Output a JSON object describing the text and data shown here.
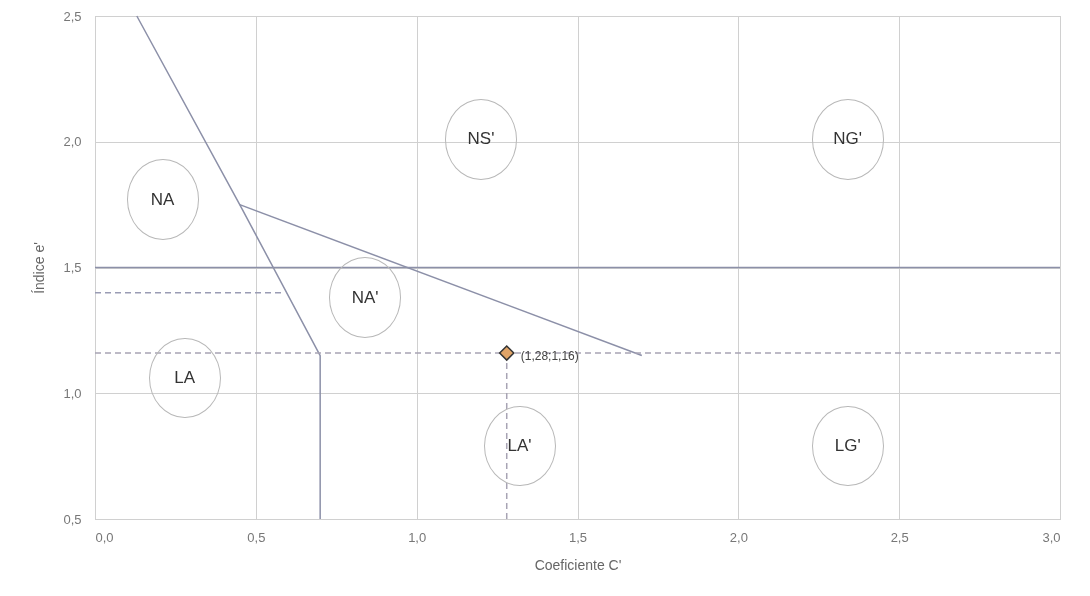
{
  "chart_data": {
    "type": "line",
    "xlabel": "Coeficiente C'",
    "ylabel": "Índice e'",
    "xlim": [
      0,
      3
    ],
    "ylim": [
      0.5,
      2.5
    ],
    "xticks": [
      {
        "value": 0,
        "label": "0,0"
      },
      {
        "value": 0.5,
        "label": "0,5"
      },
      {
        "value": 1,
        "label": "1,0"
      },
      {
        "value": 1.5,
        "label": "1,5"
      },
      {
        "value": 2,
        "label": "2,0"
      },
      {
        "value": 2.5,
        "label": "2,5"
      },
      {
        "value": 3,
        "label": "3,0"
      }
    ],
    "yticks": [
      {
        "value": 0.5,
        "label": "0,5"
      },
      {
        "value": 1,
        "label": "1,0"
      },
      {
        "value": 1.5,
        "label": "1,5"
      },
      {
        "value": 2,
        "label": "2,0"
      },
      {
        "value": 2.5,
        "label": "2,5"
      }
    ],
    "grid": true,
    "series": [
      {
        "type": "line",
        "x": [
          0.13,
          0.45,
          0.7,
          0.7
        ],
        "values": [
          2.5,
          1.75,
          1.15,
          0.5
        ],
        "color": "#8c90a8",
        "line_style": "solid"
      },
      {
        "type": "line",
        "x": [
          0.45,
          1.7
        ],
        "values": [
          1.75,
          1.15
        ],
        "color": "#8c90a8",
        "line_style": "solid"
      },
      {
        "type": "line",
        "x": [
          0,
          3
        ],
        "values": [
          1.5,
          1.5
        ],
        "color": "#8c90a8",
        "line_style": "solid"
      },
      {
        "type": "line",
        "x": [
          0,
          0.58
        ],
        "values": [
          1.4,
          1.4
        ],
        "color": "#9a9cb4",
        "line_style": "dashed"
      },
      {
        "type": "line",
        "x": [
          0,
          3
        ],
        "values": [
          1.16,
          1.16
        ],
        "color": "#a8a4b4",
        "line_style": "dashed"
      },
      {
        "type": "line",
        "x": [
          1.28,
          1.28
        ],
        "values": [
          0.5,
          1.16
        ],
        "color": "#a8a4b4",
        "line_style": "dashed"
      },
      {
        "type": "scatter",
        "x": [
          1.28
        ],
        "values": [
          1.16
        ],
        "color": "#e0a468",
        "marker": "diamond",
        "value_labels": [
          "(1,28;1,16)"
        ]
      }
    ],
    "annotations": [
      "NA",
      "NS'",
      "NG'",
      "NA'",
      "LA",
      "LA'",
      "LG'"
    ]
  }
}
